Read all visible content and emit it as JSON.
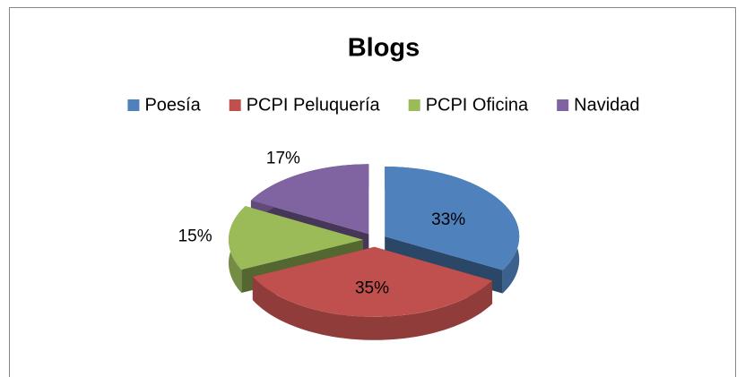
{
  "chart_data": {
    "type": "pie",
    "title": "Blogs",
    "categories": [
      "Poesía",
      "PCPI Peluquería",
      "PCPI Oficina",
      "Navidad"
    ],
    "values": [
      33,
      35,
      15,
      17
    ],
    "value_labels": [
      "33%",
      "35%",
      "15%",
      "17%"
    ],
    "colors": [
      "#4f81bd",
      "#c0504d",
      "#9bbb59",
      "#8064a2"
    ],
    "legend": "top"
  }
}
